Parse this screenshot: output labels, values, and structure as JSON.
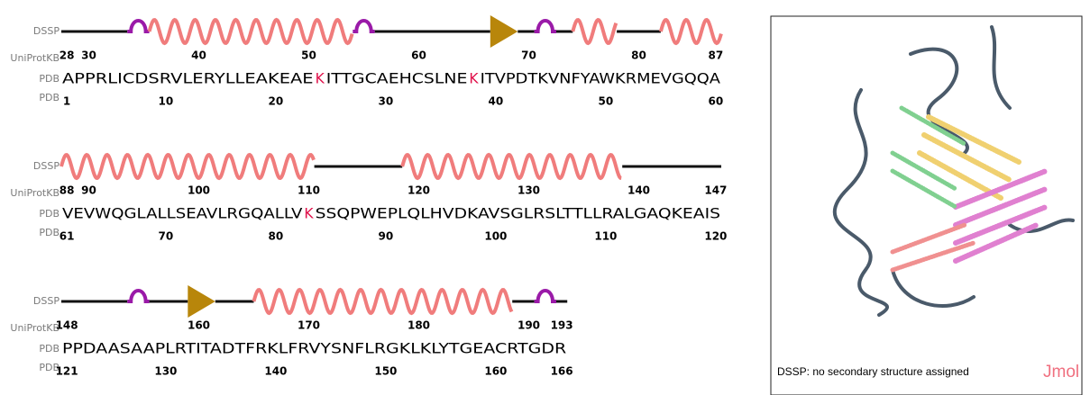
{
  "track_labels": {
    "dssp": "DSSP",
    "uniprot": "UniProtKB",
    "pdb": "PDB"
  },
  "colors": {
    "helix": "#f07c7c",
    "turn": "#9a1aa8",
    "strand": "#b8860b",
    "coil": "#111111"
  },
  "rows": [
    {
      "segments": [
        {
          "text": "APPRLICDSRVLERYLLEAKEAE",
          "color": "#000000"
        },
        {
          "text": "K",
          "color": "#e0104a"
        },
        {
          "text": "ITTGCAEHCSLNE",
          "color": "#000000"
        },
        {
          "text": "K",
          "color": "#e0104a"
        },
        {
          "text": "ITVPDTKVNFYAWKRMEVGQQA",
          "color": "#000000"
        }
      ],
      "uniprot_ticks": [
        28,
        30,
        40,
        50,
        60,
        70,
        80,
        87
      ],
      "pdb_ticks": [
        1,
        10,
        20,
        30,
        40,
        50,
        60
      ],
      "dssp": [
        {
          "type": "coil",
          "start": 0,
          "end": 6
        },
        {
          "type": "turn",
          "start": 6,
          "end": 8
        },
        {
          "type": "helix",
          "start": 8,
          "end": 26.5
        },
        {
          "type": "turn",
          "start": 26.5,
          "end": 28.5
        },
        {
          "type": "coil",
          "start": 28.5,
          "end": 39
        },
        {
          "type": "strand",
          "start": 39,
          "end": 41.5
        },
        {
          "type": "coil",
          "start": 41.5,
          "end": 43
        },
        {
          "type": "turn",
          "start": 43,
          "end": 45
        },
        {
          "type": "coil",
          "start": 45,
          "end": 46.5
        },
        {
          "type": "helix",
          "start": 46.5,
          "end": 50.5
        },
        {
          "type": "coil",
          "start": 50.5,
          "end": 54.5
        },
        {
          "type": "helix",
          "start": 54.5,
          "end": 60
        }
      ]
    },
    {
      "segments": [
        {
          "text": "VEVWQGLALLSEAVLRGQALLV",
          "color": "#000000"
        },
        {
          "text": "K",
          "color": "#e0104a"
        },
        {
          "text": "SSQPWEPLQLHVDKAVSGLRSLTTLLRALGAQKEAIS",
          "color": "#000000"
        }
      ],
      "uniprot_ticks": [
        88,
        90,
        100,
        110,
        120,
        130,
        140,
        147
      ],
      "pdb_ticks": [
        61,
        70,
        80,
        90,
        100,
        110,
        120
      ],
      "dssp": [
        {
          "type": "helix",
          "start": 0,
          "end": 23
        },
        {
          "type": "coil",
          "start": 23,
          "end": 31
        },
        {
          "type": "helix",
          "start": 31,
          "end": 51
        },
        {
          "type": "coil",
          "start": 51,
          "end": 60
        }
      ]
    },
    {
      "segments": [
        {
          "text": "PPDAASAAPLRTITADTFRKLFRVYSNFLRGKLKLYTGEACRTGDR",
          "color": "#000000"
        }
      ],
      "uniprot_ticks": [
        148,
        160,
        170,
        180,
        190,
        193
      ],
      "pdb_ticks": [
        121,
        130,
        140,
        150,
        160,
        166
      ],
      "dssp": [
        {
          "type": "coil",
          "start": 0,
          "end": 6
        },
        {
          "type": "turn",
          "start": 6,
          "end": 8
        },
        {
          "type": "coil",
          "start": 8,
          "end": 11.5
        },
        {
          "type": "strand",
          "start": 11.5,
          "end": 14
        },
        {
          "type": "coil",
          "start": 14,
          "end": 17.5
        },
        {
          "type": "helix",
          "start": 17.5,
          "end": 41
        },
        {
          "type": "coil",
          "start": 41,
          "end": 43
        },
        {
          "type": "turn",
          "start": 43,
          "end": 45
        },
        {
          "type": "coil",
          "start": 45,
          "end": 46
        }
      ]
    }
  ],
  "viewer": {
    "caption": "DSSP: no secondary structure assigned",
    "logo": "Jmol"
  }
}
